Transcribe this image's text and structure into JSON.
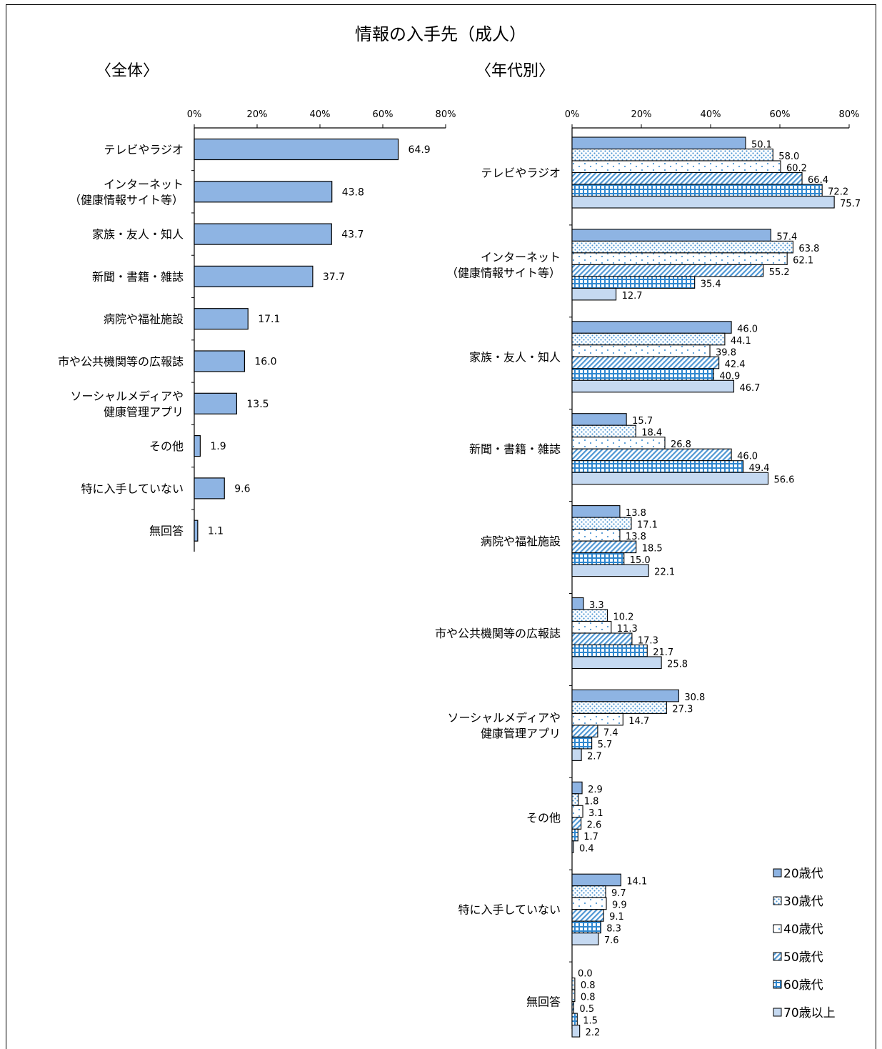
{
  "title": "情報の入手先（成人）",
  "left_heading": "〈全体〉",
  "right_heading": "〈年代別〉",
  "chart_data": [
    {
      "type": "bar",
      "orientation": "horizontal",
      "subtitle": "〈全体〉",
      "xlim": [
        0,
        80
      ],
      "xticks": [
        "0%",
        "20%",
        "40%",
        "60%",
        "80%"
      ],
      "categories": [
        [
          "テレビやラジオ"
        ],
        [
          "インターネット",
          "（健康情報サイト等）"
        ],
        [
          "家族・友人・知人"
        ],
        [
          "新聞・書籍・雑誌"
        ],
        [
          "病院や福祉施設"
        ],
        [
          "市や公共機関等の広報誌"
        ],
        [
          "ソーシャルメディアや",
          "健康管理アプリ"
        ],
        [
          "その他"
        ],
        [
          "特に入手していない"
        ],
        [
          "無回答"
        ]
      ],
      "values": [
        64.9,
        43.8,
        43.7,
        37.7,
        17.1,
        16.0,
        13.5,
        1.9,
        9.6,
        1.1
      ],
      "labels": [
        "64.9",
        "43.8",
        "43.7",
        "37.7",
        "17.1",
        "16.0",
        "13.5",
        "1.9",
        "9.6",
        "1.1"
      ],
      "color": "#8eb4e3"
    },
    {
      "type": "bar",
      "orientation": "horizontal",
      "subtitle": "〈年代別〉",
      "xlim": [
        0,
        80
      ],
      "xticks": [
        "0%",
        "20%",
        "40%",
        "60%",
        "80%"
      ],
      "categories": [
        [
          "テレビやラジオ"
        ],
        [
          "インターネット",
          "（健康情報サイト等）"
        ],
        [
          "家族・友人・知人"
        ],
        [
          "新聞・書籍・雑誌"
        ],
        [
          "病院や福祉施設"
        ],
        [
          "市や公共機関等の広報誌"
        ],
        [
          "ソーシャルメディアや",
          "健康管理アプリ"
        ],
        [
          "その他"
        ],
        [
          "特に入手していない"
        ],
        [
          "無回答"
        ]
      ],
      "series": [
        {
          "name": "20歳代",
          "pattern": "solid",
          "values": [
            50.1,
            57.4,
            46.0,
            15.7,
            13.8,
            3.3,
            30.8,
            2.9,
            14.1,
            0.0
          ],
          "labels": [
            "50.1",
            "57.4",
            "46.0",
            "15.7",
            "13.8",
            "3.3",
            "30.8",
            "2.9",
            "14.1",
            "0.0"
          ]
        },
        {
          "name": "30歳代",
          "pattern": "dots-dense",
          "values": [
            58.0,
            63.8,
            44.1,
            18.4,
            17.1,
            10.2,
            27.3,
            1.8,
            9.7,
            0.8
          ],
          "labels": [
            "58.0",
            "63.8",
            "44.1",
            "18.4",
            "17.1",
            "10.2",
            "27.3",
            "1.8",
            "9.7",
            "0.8"
          ]
        },
        {
          "name": "40歳代",
          "pattern": "dots-sparse",
          "values": [
            60.2,
            62.1,
            39.8,
            26.8,
            13.8,
            11.3,
            14.7,
            3.1,
            9.9,
            0.8
          ],
          "labels": [
            "60.2",
            "62.1",
            "39.8",
            "26.8",
            "13.8",
            "11.3",
            "14.7",
            "3.1",
            "9.9",
            "0.8"
          ]
        },
        {
          "name": "50歳代",
          "pattern": "diagonal",
          "values": [
            66.4,
            55.2,
            42.4,
            46.0,
            18.5,
            17.3,
            7.4,
            2.6,
            9.1,
            0.5
          ],
          "labels": [
            "66.4",
            "55.2",
            "42.4",
            "46.0",
            "18.5",
            "17.3",
            "7.4",
            "2.6",
            "9.1",
            "0.5"
          ]
        },
        {
          "name": "60歳代",
          "pattern": "grid",
          "values": [
            72.2,
            35.4,
            40.9,
            49.4,
            15.0,
            21.7,
            5.7,
            1.7,
            8.3,
            1.5
          ],
          "labels": [
            "72.2",
            "35.4",
            "40.9",
            "49.4",
            "15.0",
            "21.7",
            "5.7",
            "1.7",
            "8.3",
            "1.5"
          ]
        },
        {
          "name": "70歳以上",
          "pattern": "light",
          "values": [
            75.7,
            12.7,
            46.7,
            56.6,
            22.1,
            25.8,
            2.7,
            0.4,
            7.6,
            2.2
          ],
          "labels": [
            "75.7",
            "12.7",
            "46.7",
            "56.6",
            "22.1",
            "25.8",
            "2.7",
            "0.4",
            "7.6",
            "2.2"
          ]
        }
      ],
      "legend_position": "bottom-right"
    }
  ]
}
